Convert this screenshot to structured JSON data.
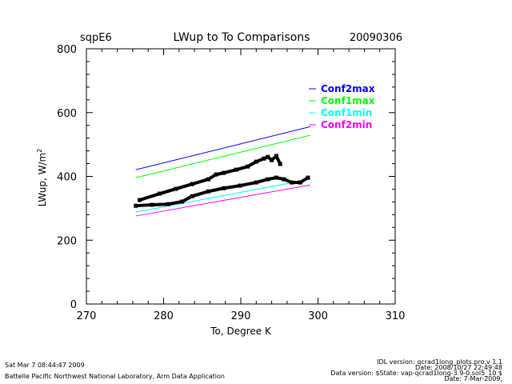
{
  "header": {
    "site": "sqpE6",
    "date": "20090306"
  },
  "footer": {
    "timestamp": "Sat Mar  7 08:44:47 2009",
    "institution": "Battelle Pacific Northwest National Laboratory, Arm Data Application",
    "idl_version": "IDL version: qcrad1long_plots.pro,v 1.1",
    "idl_date": "Date: 2008/10/27 22:49:48",
    "data_version": "Data version: $State: vap-qcrad1long-3.9-0.sol5_10 $",
    "data_date": "Date: 7-Mar-2009,"
  },
  "chart_data": {
    "type": "scatter",
    "title": "LWup to To Comparisons",
    "xlabel": "To, Degree K",
    "ylabel": "LWup, W/m",
    "ylabel_sup": "2",
    "xlim": [
      270,
      310
    ],
    "ylim": [
      0,
      800
    ],
    "xticks": [
      270,
      280,
      290,
      300,
      310
    ],
    "yticks": [
      0,
      200,
      400,
      600,
      800
    ],
    "legend_placement": "top-right",
    "lines": [
      {
        "name": "Conf2max",
        "color": "#0000ff",
        "x": [
          276.4,
          299.0
        ],
        "y": [
          421,
          556
        ]
      },
      {
        "name": "Conf1max",
        "color": "#00ff00",
        "x": [
          276.4,
          299.0
        ],
        "y": [
          396,
          529
        ]
      },
      {
        "name": "Conf1min",
        "color": "#00ffff",
        "x": [
          276.4,
          299.0
        ],
        "y": [
          288,
          391
        ]
      },
      {
        "name": "Conf2min",
        "color": "#ff00ff",
        "x": [
          276.4,
          299.0
        ],
        "y": [
          276,
          373
        ]
      }
    ],
    "series": [
      {
        "name": "observed-upper",
        "color": "#000000",
        "x": [
          276.9,
          279.5,
          281.6,
          283.7,
          285.8,
          286.8,
          287.8,
          289.4,
          290.9,
          292.0,
          293.0,
          293.5,
          294.0,
          294.6,
          295.1
        ],
        "y": [
          326,
          346,
          361,
          376,
          391,
          406,
          411,
          421,
          431,
          446,
          456,
          461,
          451,
          464,
          439
        ]
      },
      {
        "name": "observed-lower",
        "color": "#000000",
        "x": [
          276.4,
          278.5,
          280.6,
          282.4,
          283.7,
          285.8,
          287.8,
          289.9,
          292.0,
          293.5,
          294.6,
          295.6,
          296.6,
          297.7,
          298.7
        ],
        "y": [
          308,
          311,
          313,
          321,
          338,
          353,
          363,
          371,
          381,
          391,
          396,
          391,
          381,
          381,
          396
        ]
      }
    ]
  }
}
